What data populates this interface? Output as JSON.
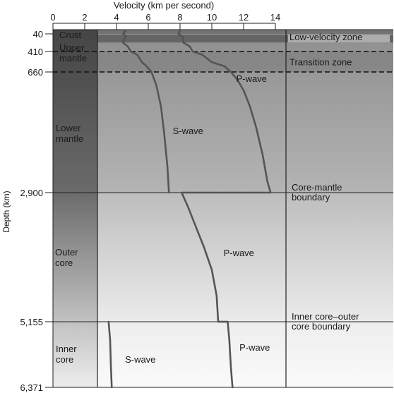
{
  "chart_data": {
    "type": "line",
    "title": "Velocity (km per second)",
    "xlabel": "Velocity (km per second)",
    "ylabel": "Depth (km)",
    "xlim": [
      0,
      14
    ],
    "x_ticks": [
      "0",
      "2",
      "4",
      "6",
      "8",
      "10",
      "12",
      "14"
    ],
    "x_tick_values": [
      0,
      2,
      4,
      6,
      8,
      10,
      12,
      14
    ],
    "y_ticks": [
      {
        "depth": 40,
        "label": "40"
      },
      {
        "depth": 410,
        "label": "410"
      },
      {
        "depth": 660,
        "label": "660"
      },
      {
        "depth": 2900,
        "label": "2,900"
      },
      {
        "depth": 5155,
        "label": "5,155"
      },
      {
        "depth": 6371,
        "label": "6,371"
      }
    ],
    "layers": [
      {
        "label": "Crust",
        "top": 0,
        "bottom": 40
      },
      {
        "label": "Upper mantle",
        "top": 40,
        "bottom": 660
      },
      {
        "label": "Lower mantle",
        "top": 660,
        "bottom": 2900
      },
      {
        "label": "Outer core",
        "top": 2900,
        "bottom": 5155
      },
      {
        "label": "Inner core",
        "top": 5155,
        "bottom": 6371
      }
    ],
    "zones": [
      {
        "label": "Low-velocity zone",
        "top": 60,
        "bottom": 220
      },
      {
        "label": "Transition zone",
        "top": 410,
        "bottom": 660
      }
    ],
    "boundaries": [
      {
        "label_lines": [
          "Core-mantle",
          "boundary"
        ],
        "depth": 2900
      },
      {
        "label_lines": [
          "Inner core–outer",
          "core boundary"
        ],
        "depth": 5155
      }
    ],
    "series": [
      {
        "name": "P-wave",
        "segment": "mantle",
        "points": [
          [
            8.0,
            5
          ],
          [
            7.9,
            40
          ],
          [
            8.1,
            80
          ],
          [
            8.2,
            150
          ],
          [
            8.2,
            220
          ],
          [
            8.6,
            300
          ],
          [
            8.8,
            410
          ],
          [
            9.4,
            450
          ],
          [
            10.0,
            540
          ],
          [
            10.8,
            590
          ],
          [
            11.2,
            660
          ],
          [
            11.6,
            800
          ],
          [
            12.0,
            1000
          ],
          [
            12.4,
            1300
          ],
          [
            12.8,
            1700
          ],
          [
            13.2,
            2200
          ],
          [
            13.5,
            2700
          ],
          [
            13.7,
            2900
          ]
        ]
      },
      {
        "name": "S-wave",
        "segment": "mantle",
        "points": [
          [
            4.6,
            5
          ],
          [
            4.4,
            40
          ],
          [
            4.6,
            80
          ],
          [
            4.5,
            150
          ],
          [
            4.4,
            220
          ],
          [
            4.7,
            300
          ],
          [
            4.9,
            410
          ],
          [
            5.3,
            450
          ],
          [
            5.6,
            540
          ],
          [
            5.9,
            590
          ],
          [
            6.2,
            660
          ],
          [
            6.5,
            900
          ],
          [
            6.8,
            1300
          ],
          [
            7.0,
            1800
          ],
          [
            7.2,
            2400
          ],
          [
            7.3,
            2900
          ]
        ]
      },
      {
        "name": "P-wave",
        "segment": "outer-core",
        "points": [
          [
            8.1,
            2900
          ],
          [
            8.5,
            3150
          ],
          [
            9.0,
            3500
          ],
          [
            9.5,
            3850
          ],
          [
            10.0,
            4250
          ],
          [
            10.3,
            4700
          ],
          [
            10.4,
            5155
          ]
        ]
      },
      {
        "name": "P-wave",
        "segment": "inner-core",
        "points": [
          [
            11.0,
            5155
          ],
          [
            11.1,
            5500
          ],
          [
            11.2,
            6000
          ],
          [
            11.3,
            6371
          ]
        ]
      },
      {
        "name": "S-wave",
        "segment": "inner-core",
        "points": [
          [
            3.5,
            5155
          ],
          [
            3.6,
            5500
          ],
          [
            3.65,
            6000
          ],
          [
            3.7,
            6371
          ]
        ]
      }
    ],
    "curve_labels": [
      {
        "text": "P-wave",
        "x": 12.5,
        "depth": 780
      },
      {
        "text": "S-wave",
        "x": 8.5,
        "depth": 1750
      },
      {
        "text": "P-wave",
        "x": 11.7,
        "depth": 3950
      },
      {
        "text": "P-wave",
        "x": 12.7,
        "depth": 5625
      },
      {
        "text": "S-wave",
        "x": 5.5,
        "depth": 5850
      }
    ]
  }
}
